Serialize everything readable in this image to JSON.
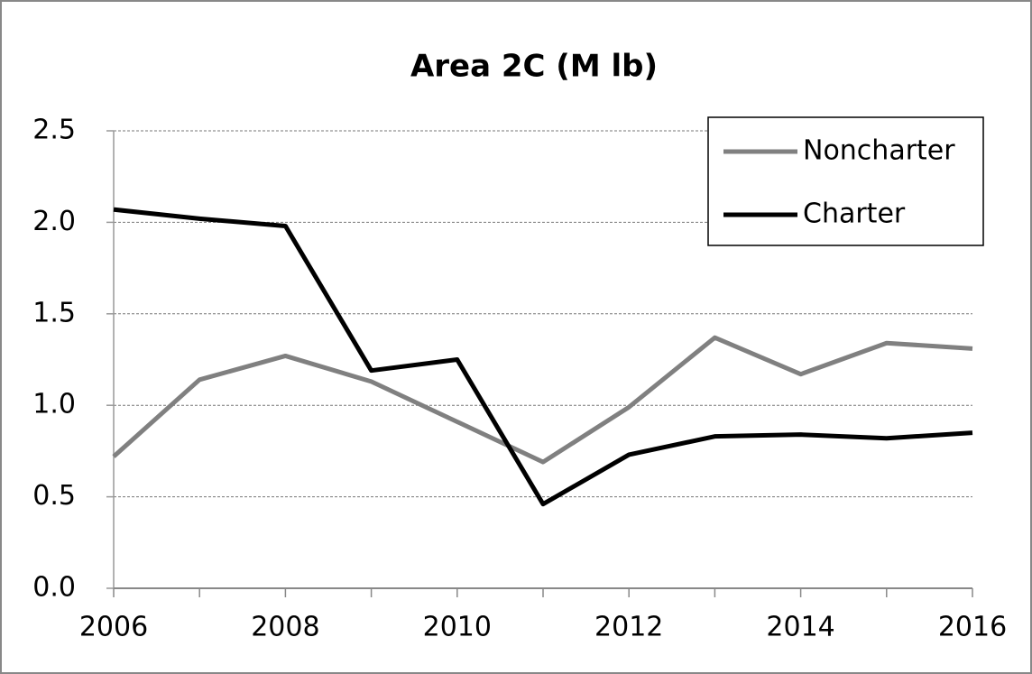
{
  "chart_data": {
    "type": "line",
    "title": "Area 2C (M lb)",
    "x": [
      2006,
      2007,
      2008,
      2009,
      2010,
      2011,
      2012,
      2013,
      2014,
      2015,
      2016
    ],
    "series": [
      {
        "name": "Noncharter",
        "color": "#808080",
        "values": [
          0.72,
          1.14,
          1.27,
          1.13,
          0.91,
          0.69,
          0.99,
          1.37,
          1.17,
          1.34,
          1.31
        ]
      },
      {
        "name": "Charter",
        "color": "#000000",
        "values": [
          2.07,
          2.02,
          1.98,
          1.19,
          1.25,
          0.46,
          0.73,
          0.83,
          0.84,
          0.82,
          0.85
        ]
      }
    ],
    "xlim": [
      2006,
      2016
    ],
    "xticks": [
      2006,
      2008,
      2010,
      2012,
      2014,
      2016
    ],
    "ylim": [
      0,
      2.5
    ],
    "yticks": [
      {
        "value": 0,
        "label": "0.0"
      },
      0.5,
      {
        "value": 1,
        "label": "1.0"
      },
      1.5,
      {
        "value": 2,
        "label": "2.0"
      },
      2.5
    ],
    "grid": true,
    "legend": "upper-right"
  }
}
